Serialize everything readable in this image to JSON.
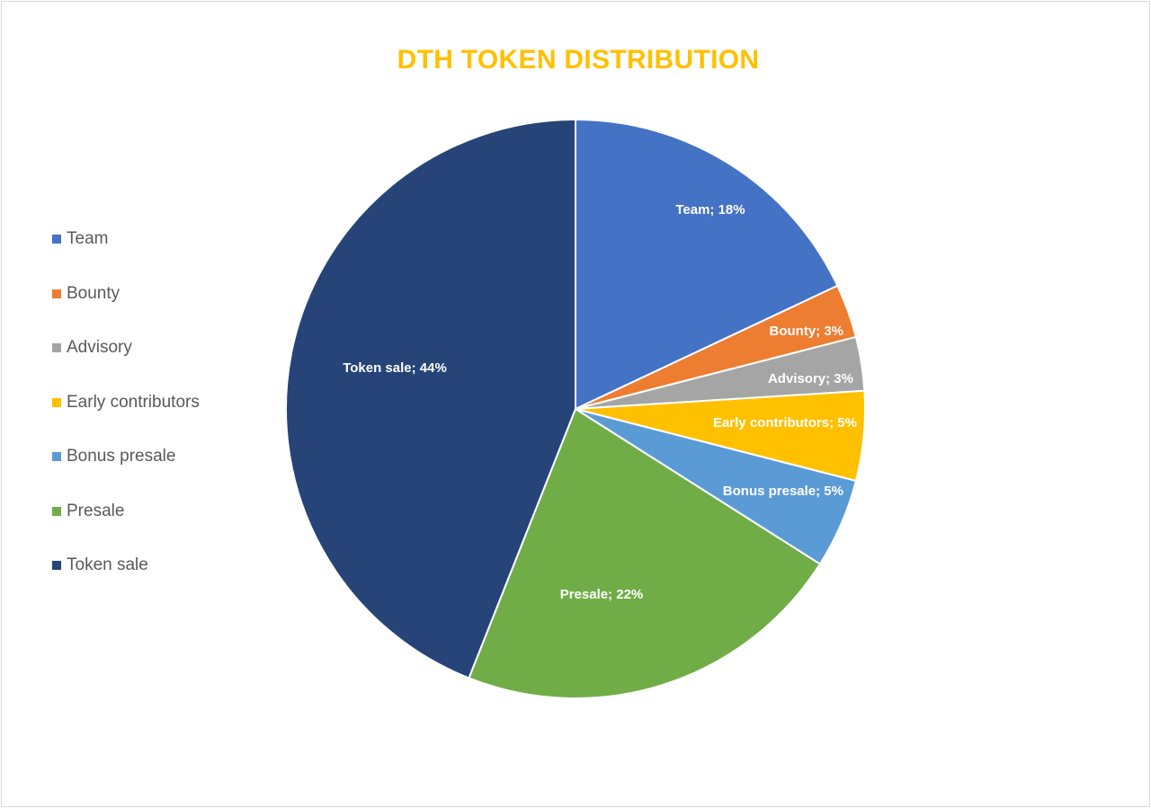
{
  "chart_data": {
    "type": "pie",
    "title": "DTH TOKEN DISTRIBUTION",
    "title_color": "#FFC000",
    "legend_position": "left",
    "start_angle_deg": 0,
    "direction": "clockwise",
    "slices": [
      {
        "label": "Team",
        "value": 18,
        "data_label": "Team;  18%",
        "color": "#4472C4"
      },
      {
        "label": "Bounty",
        "value": 3,
        "data_label": "Bounty; 3%",
        "color": "#ED7D31"
      },
      {
        "label": "Advisory",
        "value": 3,
        "data_label": "Advisory; 3%",
        "color": "#A5A5A5"
      },
      {
        "label": "Early contributors",
        "value": 5,
        "data_label": "Early contributors; 5%",
        "color": "#FFC000"
      },
      {
        "label": "Bonus presale",
        "value": 5,
        "data_label": "Bonus presale; 5%",
        "color": "#5B9BD5"
      },
      {
        "label": "Presale",
        "value": 22,
        "data_label": "Presale; 22%",
        "color": "#70AD47"
      },
      {
        "label": "Token sale",
        "value": 44,
        "data_label": "Token sale; 44%",
        "color": "#264478"
      }
    ]
  }
}
